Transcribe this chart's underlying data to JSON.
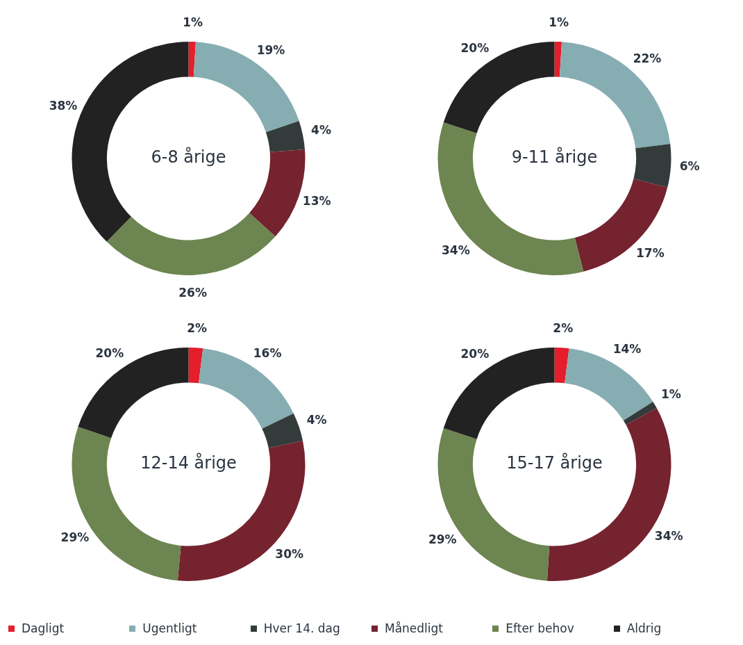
{
  "chart_data": [
    {
      "type": "donut",
      "title": "6-8 årige",
      "categories": [
        "Dagligt",
        "Ugentligt",
        "Hver 14. dag",
        "Månedligt",
        "Efter behov",
        "Aldrig"
      ],
      "values": [
        1,
        19,
        4,
        13,
        26,
        38
      ],
      "value_labels": [
        "1%",
        "19%",
        "4%",
        "13%",
        "26%",
        "38%"
      ],
      "colors": [
        "#e41e2b",
        "#86adb2",
        "#343b3b",
        "#74232f",
        "#6d8550",
        "#222222"
      ],
      "legend": "bottom"
    },
    {
      "type": "donut",
      "title": "9-11 årige",
      "categories": [
        null,
        null,
        null,
        null,
        null,
        null
      ],
      "values": [
        1,
        22,
        6,
        17,
        34,
        20
      ],
      "value_labels": [
        "1%",
        "22%",
        "6%",
        "17%",
        "34%",
        "20%"
      ],
      "colors": [
        "#e41e2b",
        "#86adb2",
        "#343b3b",
        "#74232f",
        "#6d8550",
        "#222222"
      ]
    },
    {
      "type": "donut",
      "title": "12-14 årige",
      "categories": [
        null,
        null,
        null,
        null,
        null,
        null
      ],
      "values": [
        2,
        16,
        4,
        30,
        29,
        20
      ],
      "value_labels": [
        "2%",
        "16%",
        "4%",
        "30%",
        "29%",
        "20%"
      ],
      "colors": [
        "#e41e2b",
        "#86adb2",
        "#343b3b",
        "#74232f",
        "#6d8550",
        "#222222"
      ]
    },
    {
      "type": "donut",
      "title": "15-17 årige",
      "categories": [
        null,
        null,
        null,
        null,
        null,
        null
      ],
      "values": [
        2,
        14,
        1,
        34,
        29,
        20
      ],
      "value_labels": [
        "2%",
        "14%",
        "1%",
        "34%",
        "29%",
        "20%"
      ],
      "colors": [
        "#e41e2b",
        "#86adb2",
        "#343b3b",
        "#74232f",
        "#6d8550",
        "#222222"
      ]
    }
  ]
}
